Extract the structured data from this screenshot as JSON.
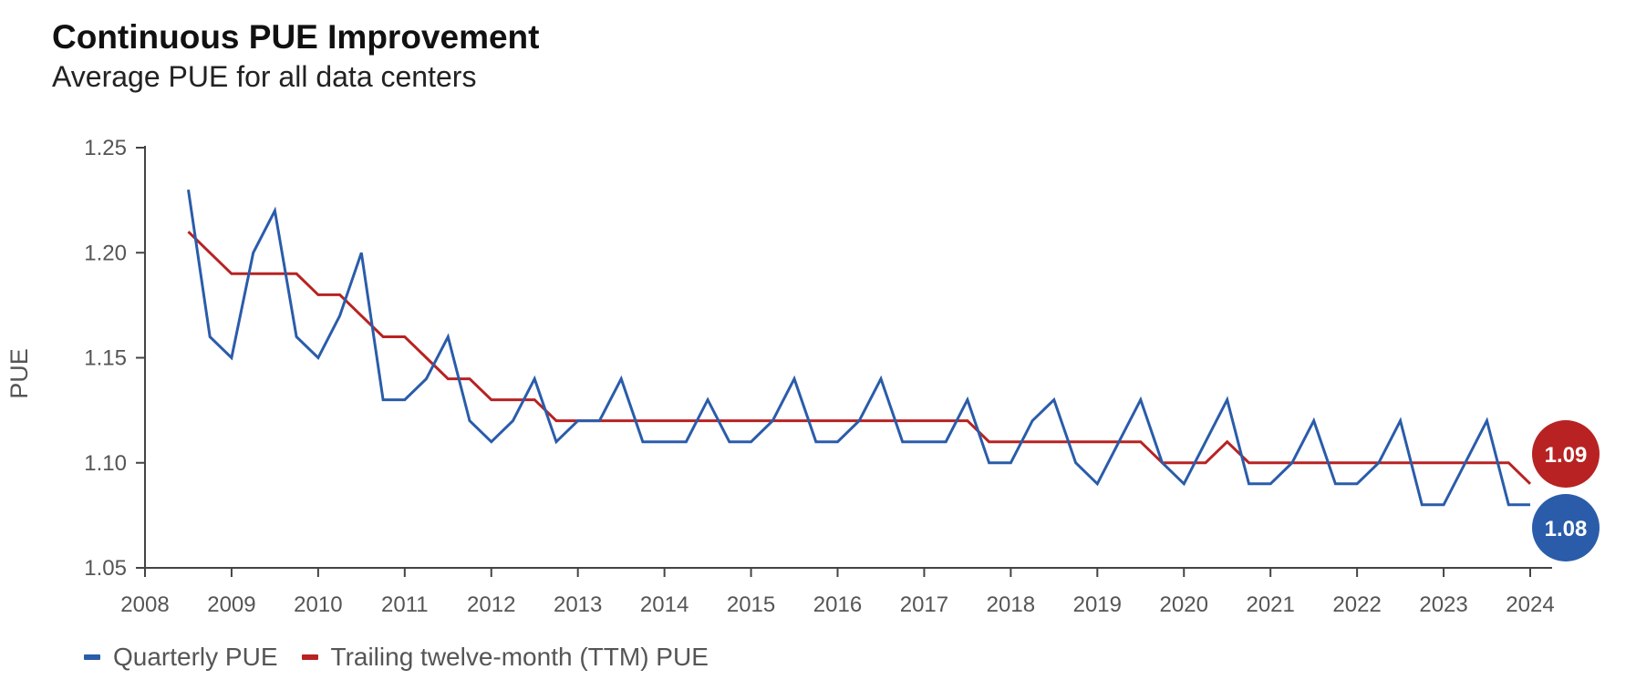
{
  "chart_data": {
    "type": "line",
    "title": "Continuous PUE Improvement",
    "subtitle": "Average PUE for all data centers",
    "ylabel": "PUE",
    "xlabel": "",
    "xlim": [
      2008,
      2024
    ],
    "ylim": [
      1.05,
      1.25
    ],
    "x_ticks": [
      "2008",
      "2009",
      "2010",
      "2011",
      "2012",
      "2013",
      "2014",
      "2015",
      "2016",
      "2017",
      "2018",
      "2019",
      "2020",
      "2021",
      "2022",
      "2023",
      "2024"
    ],
    "y_ticks": [
      "1.05",
      "1.10",
      "1.15",
      "1.20",
      "1.25"
    ],
    "grid": false,
    "legend_position": "bottom-left",
    "x": [
      2008.5,
      2008.75,
      2009.0,
      2009.25,
      2009.5,
      2009.75,
      2010.0,
      2010.25,
      2010.5,
      2010.75,
      2011.0,
      2011.25,
      2011.5,
      2011.75,
      2012.0,
      2012.25,
      2012.5,
      2012.75,
      2013.0,
      2013.25,
      2013.5,
      2013.75,
      2014.0,
      2014.25,
      2014.5,
      2014.75,
      2015.0,
      2015.25,
      2015.5,
      2015.75,
      2016.0,
      2016.25,
      2016.5,
      2016.75,
      2017.0,
      2017.25,
      2017.5,
      2017.75,
      2018.0,
      2018.25,
      2018.5,
      2018.75,
      2019.0,
      2019.25,
      2019.5,
      2019.75,
      2020.0,
      2020.25,
      2020.5,
      2020.75,
      2021.0,
      2021.25,
      2021.5,
      2021.75,
      2022.0,
      2022.25,
      2022.5,
      2022.75,
      2023.0,
      2023.25,
      2023.5,
      2023.75,
      2024.0
    ],
    "series": [
      {
        "name": "Quarterly PUE",
        "color": "#2a5caa",
        "values": [
          1.23,
          1.16,
          1.15,
          1.2,
          1.22,
          1.16,
          1.15,
          1.17,
          1.2,
          1.13,
          1.13,
          1.14,
          1.16,
          1.12,
          1.11,
          1.12,
          1.14,
          1.11,
          1.12,
          1.12,
          1.14,
          1.11,
          1.11,
          1.11,
          1.13,
          1.11,
          1.11,
          1.12,
          1.14,
          1.11,
          1.11,
          1.12,
          1.14,
          1.11,
          1.11,
          1.11,
          1.13,
          1.1,
          1.1,
          1.12,
          1.13,
          1.1,
          1.09,
          1.11,
          1.13,
          1.1,
          1.09,
          1.11,
          1.13,
          1.09,
          1.09,
          1.1,
          1.12,
          1.09,
          1.09,
          1.1,
          1.12,
          1.08,
          1.08,
          1.1,
          1.12,
          1.08,
          1.08
        ],
        "end_label": "1.08",
        "end_value": 1.08
      },
      {
        "name": "Trailing twelve-month (TTM) PUE",
        "color": "#b82222",
        "values": [
          1.21,
          1.2,
          1.19,
          1.19,
          1.19,
          1.19,
          1.18,
          1.18,
          1.17,
          1.16,
          1.16,
          1.15,
          1.14,
          1.14,
          1.13,
          1.13,
          1.13,
          1.12,
          1.12,
          1.12,
          1.12,
          1.12,
          1.12,
          1.12,
          1.12,
          1.12,
          1.12,
          1.12,
          1.12,
          1.12,
          1.12,
          1.12,
          1.12,
          1.12,
          1.12,
          1.12,
          1.12,
          1.11,
          1.11,
          1.11,
          1.11,
          1.11,
          1.11,
          1.11,
          1.11,
          1.1,
          1.1,
          1.1,
          1.11,
          1.1,
          1.1,
          1.1,
          1.1,
          1.1,
          1.1,
          1.1,
          1.1,
          1.1,
          1.1,
          1.1,
          1.1,
          1.1,
          1.09
        ],
        "end_label": "1.09",
        "end_value": 1.09
      }
    ]
  }
}
